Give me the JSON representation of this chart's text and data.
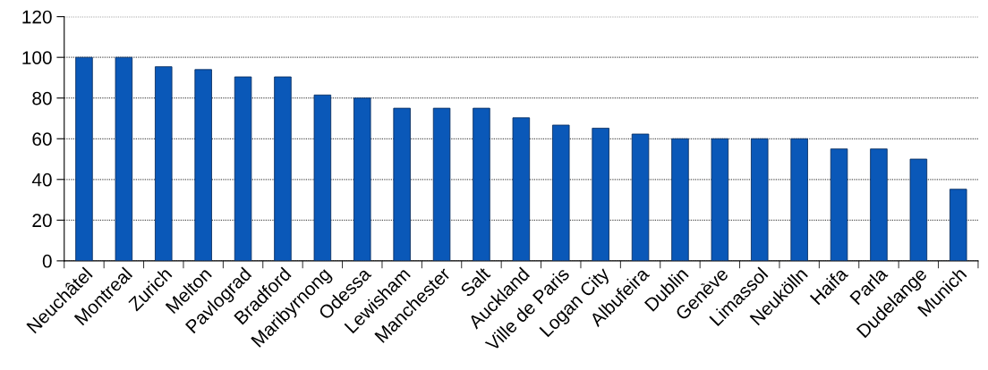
{
  "chart_data": {
    "type": "bar",
    "categories": [
      "Neuchâtel",
      "Montreal",
      "Zurich",
      "Melton",
      "Pavlograd",
      "Bradford",
      "Maribyrnong",
      "Odessa",
      "Lewisham",
      "Manchester",
      "Salt",
      "Auckland",
      "Ville de Paris",
      "Logan City",
      "Albufeira",
      "Dublin",
      "Genève",
      "Limassol",
      "Neukölln",
      "Haifa",
      "Parla",
      "Dudelange",
      "Munich"
    ],
    "values": [
      100,
      100,
      95.4,
      94,
      90.4,
      90.4,
      81.5,
      80,
      75,
      75,
      75,
      70.3,
      66.7,
      65.2,
      62.3,
      60,
      60,
      60,
      60,
      55,
      55,
      50,
      35.2
    ],
    "color": "#0a58b8",
    "ylim": [
      0,
      120
    ],
    "yticks": [
      0,
      20,
      40,
      60,
      80,
      100,
      120
    ],
    "grid": "y"
  }
}
